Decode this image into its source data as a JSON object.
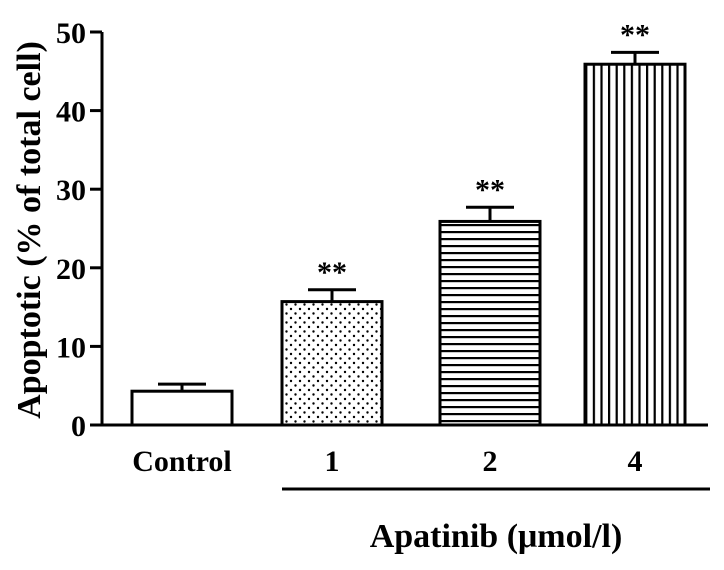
{
  "chart_data": {
    "type": "bar",
    "title": "",
    "ylabel": "Apoptotic (% of total cell)",
    "xlabel": "",
    "ylim": [
      0,
      50
    ],
    "yticks": [
      0,
      10,
      20,
      30,
      40,
      50
    ],
    "ytick_labels": [
      "0",
      "10",
      "20",
      "30",
      "40",
      "50"
    ],
    "grid": false,
    "categories": [
      "Control",
      "1",
      "2",
      "4"
    ],
    "values": [
      4.3,
      15.7,
      25.9,
      45.9
    ],
    "errors": [
      0.9,
      1.5,
      1.8,
      1.5
    ],
    "significance": [
      "",
      "**",
      "**",
      "**"
    ],
    "fill_patterns": [
      "none",
      "dots",
      "horizontal-lines",
      "vertical-lines"
    ],
    "bracket_label": "Apatinib (μmol/l)",
    "bar_color": "#000000",
    "background_color": "#ffffff"
  }
}
